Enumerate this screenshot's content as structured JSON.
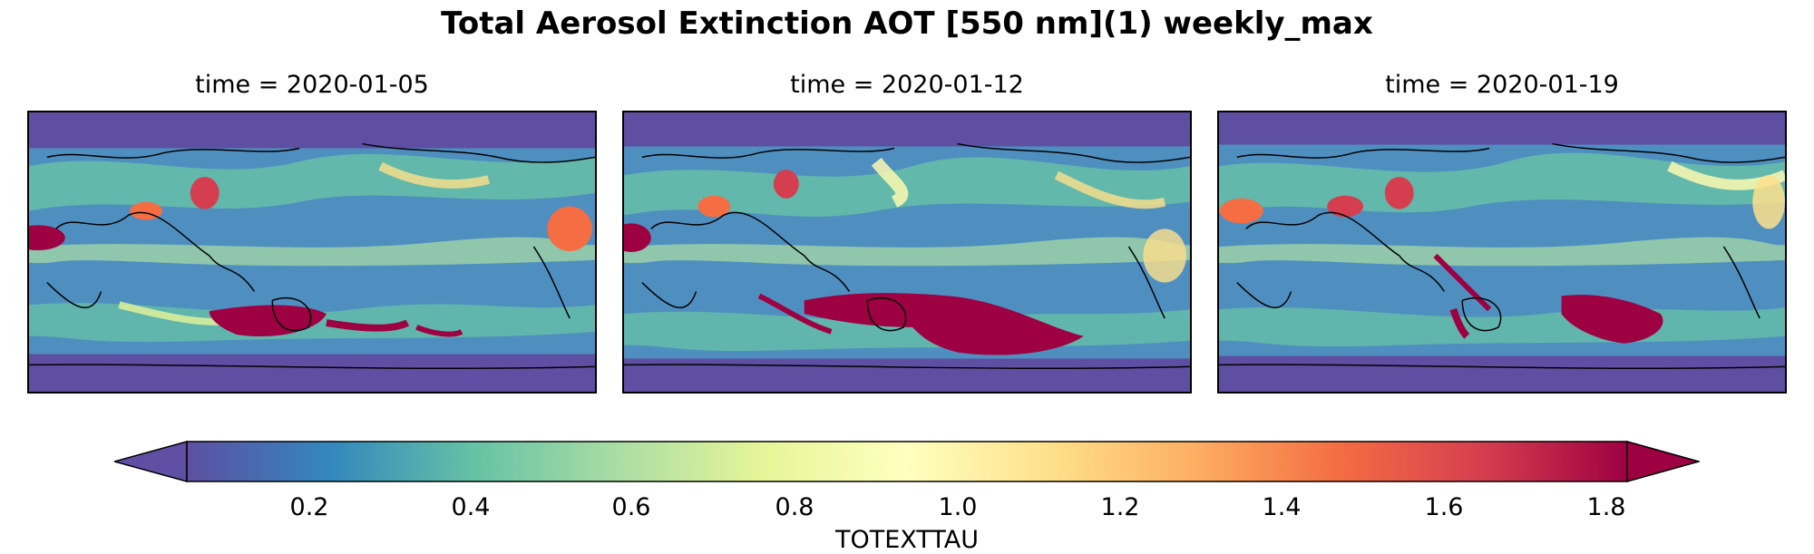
{
  "title": "Total Aerosol Extinction AOT [550 nm](1) weekly_max",
  "panels": [
    {
      "label": "time = 2020-01-05"
    },
    {
      "label": "time = 2020-01-12"
    },
    {
      "label": "time = 2020-01-19"
    }
  ],
  "colorbar": {
    "label": "TOTEXTTAU",
    "ticks": [
      "0.2",
      "0.4",
      "0.6",
      "0.8",
      "1.0",
      "1.2",
      "1.4",
      "1.6",
      "1.8"
    ],
    "colormap": "Spectral_r",
    "extend": "both",
    "vmin": 0.03,
    "vmax": 1.82
  },
  "colors": {
    "background_low": "#5e4fa2",
    "mid_blue": "#3a7db8",
    "teal": "#5fbba6",
    "pale_yellow": "#fbf8b0",
    "orange": "#f98e52",
    "high": "#9e0142"
  }
}
